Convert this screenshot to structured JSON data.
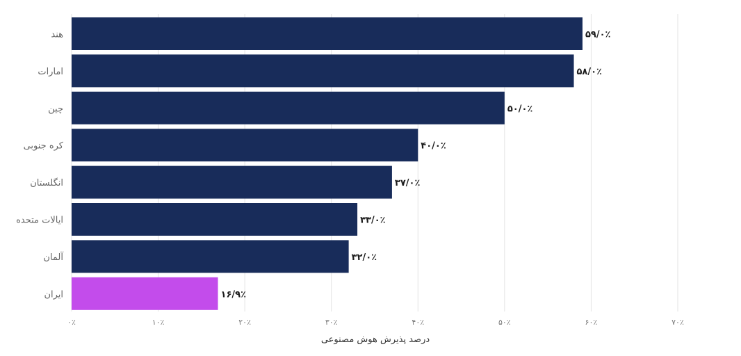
{
  "chart_data": {
    "type": "bar",
    "orientation": "horizontal",
    "categories": [
      "هند",
      "امارات",
      "چین",
      "کره جنوبی",
      "انگلستان",
      "ایالات متحده",
      "آلمان",
      "ایران"
    ],
    "values": [
      59.0,
      58.0,
      50.0,
      40.0,
      37.0,
      33.0,
      32.0,
      16.9
    ],
    "value_labels": [
      "۵۹/۰٪",
      "۵۸/۰٪",
      "۵۰/۰٪",
      "۴۰/۰٪",
      "۳۷/۰٪",
      "۳۳/۰٪",
      "۳۲/۰٪",
      "۱۶/۹٪"
    ],
    "bar_colors": [
      "#182c5a",
      "#182c5a",
      "#182c5a",
      "#182c5a",
      "#182c5a",
      "#182c5a",
      "#182c5a",
      "#c34ceb"
    ],
    "xticks": [
      0,
      10,
      20,
      30,
      40,
      50,
      60,
      70
    ],
    "xtick_labels": [
      "۰٪",
      "۱۰٪",
      "۲۰٪",
      "۳۰٪",
      "۴۰٪",
      "۵۰٪",
      "۶۰٪",
      "۷۰٪"
    ],
    "xlim": [
      0,
      70
    ],
    "xlabel": "درصد پذیرش هوش مصنوعی",
    "ylabel": "",
    "title": "",
    "grid": true
  }
}
